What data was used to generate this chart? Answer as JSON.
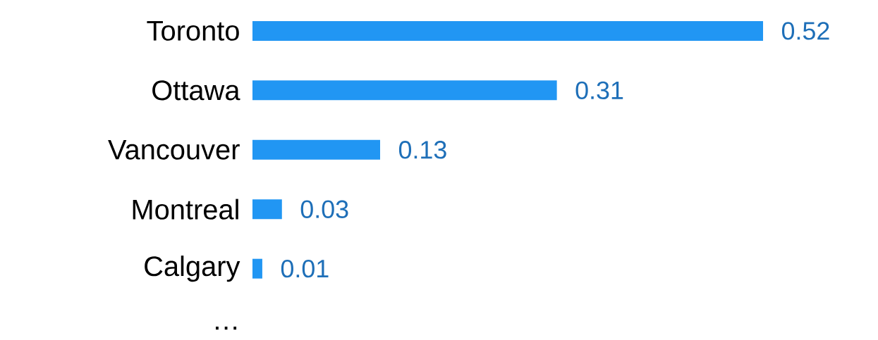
{
  "chart_data": {
    "type": "bar",
    "orientation": "horizontal",
    "categories": [
      "Toronto",
      "Ottawa",
      "Vancouver",
      "Montreal",
      "Calgary",
      "…"
    ],
    "values": [
      0.52,
      0.31,
      0.13,
      0.03,
      0.01,
      null
    ],
    "color": "#2196f3",
    "data_labels": true
  }
}
